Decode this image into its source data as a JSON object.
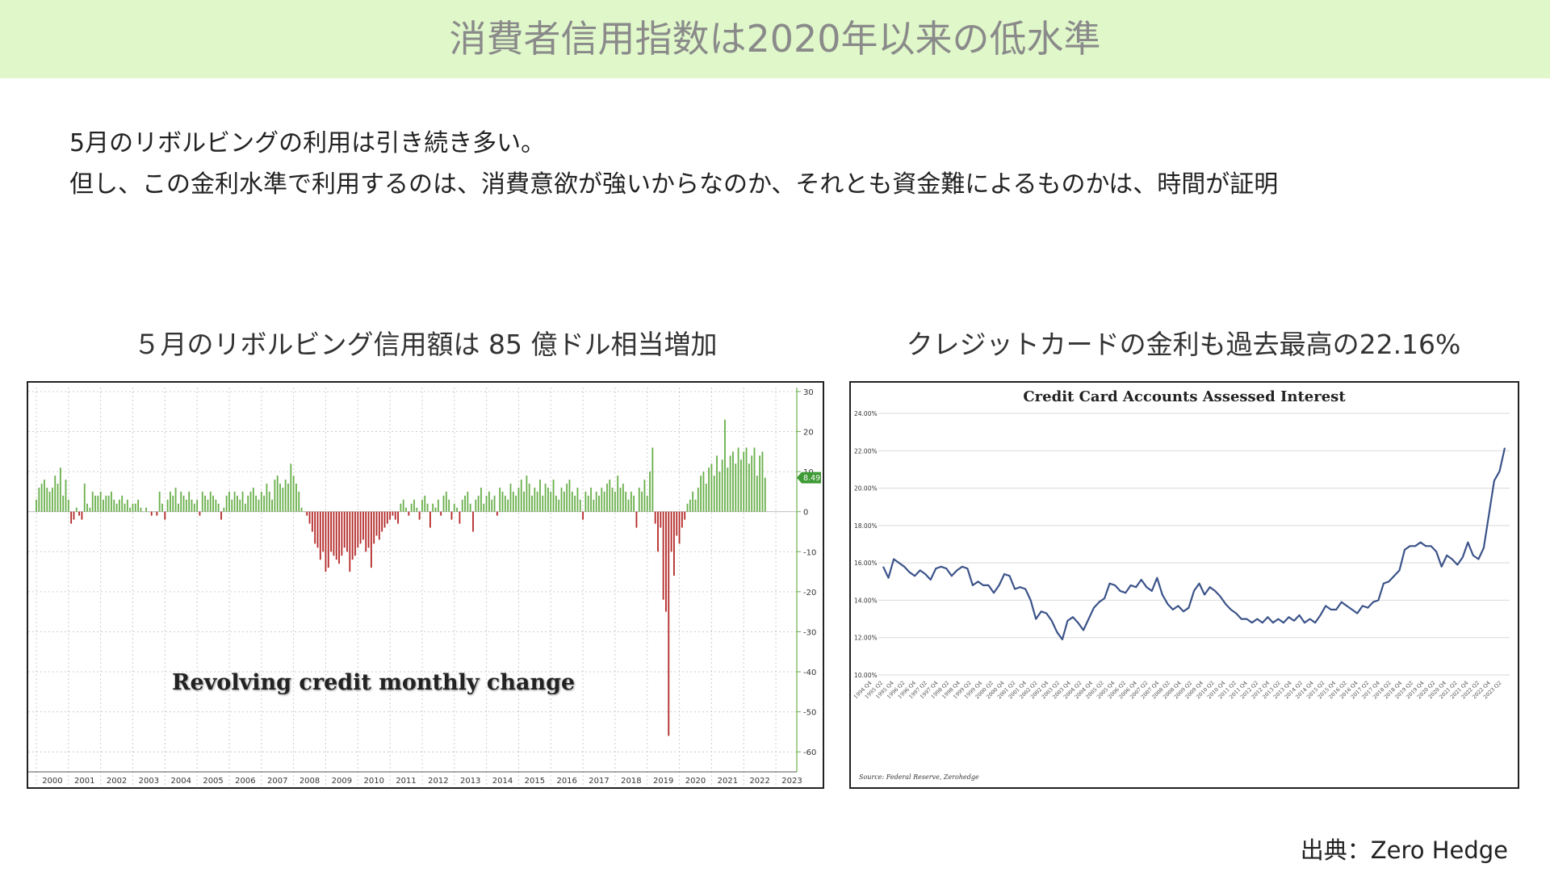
{
  "header": {
    "title": "消費者信用指数は2020年以来の低水準"
  },
  "summary": {
    "line1": "5月のリボルビングの利用は引き続き多い。",
    "line2": "但し、この金利水準で利用するのは、消費意欲が強いからなのか、それとも資金難によるものかは、時間が証明"
  },
  "left_panel": {
    "title": "５月のリボルビング信用額は 85 億ドル相当増加"
  },
  "right_panel": {
    "title": "クレジットカードの金利も過去最高の22.16%"
  },
  "source": {
    "label": "出典：Zero Hedge"
  },
  "chart_data": [
    {
      "type": "bar",
      "annotation": "Revolving credit monthly change",
      "ylim": [
        -65,
        31
      ],
      "y_ticks": [
        "30",
        "20",
        "10",
        "0",
        "-10",
        "-20",
        "-30",
        "-40",
        "-50",
        "-60"
      ],
      "x_labels": [
        "2000",
        "2001",
        "2002",
        "2003",
        "2004",
        "2005",
        "2006",
        "2007",
        "2008",
        "2009",
        "2010",
        "2011",
        "2012",
        "2013",
        "2014",
        "2015",
        "2016",
        "2017",
        "2018",
        "2019",
        "2020",
        "2021",
        "2022",
        "2023"
      ],
      "last_value_label": "8.497",
      "positive_color": "#6ab04c",
      "negative_color": "#b52a2a",
      "x_start": 2000.0,
      "x_step": 0.08333,
      "values": [
        3,
        6,
        7,
        8,
        6,
        5,
        6,
        9,
        7,
        11,
        4,
        8,
        3,
        -3,
        -2,
        1,
        -1,
        -2,
        7,
        2,
        1,
        5,
        4,
        4,
        5,
        3,
        4,
        4,
        5,
        3,
        2,
        3,
        4,
        2,
        3,
        1,
        2,
        2,
        3,
        1,
        0,
        1,
        0,
        -1,
        0,
        -1,
        5,
        2,
        -2,
        3,
        5,
        4,
        6,
        2,
        5,
        4,
        3,
        5,
        3,
        2,
        3,
        -1,
        5,
        4,
        3,
        5,
        4,
        3,
        2,
        -2,
        1,
        4,
        5,
        3,
        5,
        4,
        3,
        5,
        2,
        4,
        5,
        6,
        4,
        3,
        5,
        4,
        7,
        5,
        3,
        8,
        9,
        7,
        6,
        8,
        7,
        12,
        9,
        7,
        5,
        1,
        0,
        -1,
        -3,
        -5,
        -8,
        -9,
        -12,
        -10,
        -15,
        -14,
        -10,
        -11,
        -12,
        -13,
        -11,
        -9,
        -10,
        -15,
        -12,
        -11,
        -9,
        -8,
        -7,
        -10,
        -9,
        -14,
        -8,
        -6,
        -7,
        -5,
        -4,
        -3,
        -2,
        -1,
        -2,
        -3,
        2,
        3,
        1,
        -1,
        2,
        3,
        1,
        -2,
        3,
        4,
        2,
        -4,
        2,
        1,
        3,
        -1,
        4,
        5,
        3,
        -2,
        2,
        1,
        -3,
        3,
        4,
        5,
        2,
        -5,
        3,
        4,
        6,
        2,
        4,
        5,
        3,
        4,
        -1,
        6,
        5,
        4,
        3,
        7,
        5,
        4,
        6,
        8,
        5,
        9,
        7,
        4,
        6,
        5,
        8,
        4,
        7,
        6,
        5,
        8,
        4,
        3,
        6,
        5,
        7,
        8,
        5,
        4,
        6,
        3,
        -2,
        5,
        4,
        6,
        3,
        5,
        4,
        6,
        5,
        7,
        8,
        6,
        5,
        9,
        6,
        7,
        5,
        3,
        5,
        4,
        -4,
        6,
        5,
        8,
        4,
        10,
        16,
        -3,
        -10,
        -4,
        -22,
        -25,
        -56,
        -10,
        -16,
        -6,
        -8,
        -4,
        -2,
        2,
        3,
        5,
        3,
        6,
        9,
        10,
        7,
        11,
        12,
        9,
        14,
        10,
        13,
        23,
        11,
        14,
        15,
        12,
        16,
        13,
        15,
        16,
        12,
        14,
        16,
        9,
        14,
        15,
        8.5
      ]
    },
    {
      "type": "line",
      "title": "Credit Card Accounts Assessed Interest",
      "ylim": [
        10,
        24
      ],
      "y_ticks": [
        "24.00%",
        "22.00%",
        "20.00%",
        "18.00%",
        "16.00%",
        "14.00%",
        "12.00%",
        "10.00%"
      ],
      "x_labels": [
        "1994 Q4",
        "1995 Q2",
        "1995 Q4",
        "1996 Q2",
        "1996 Q4",
        "1997 Q2",
        "1997 Q4",
        "1998 Q2",
        "1998 Q4",
        "1999 Q2",
        "1999 Q4",
        "2000 Q2",
        "2000 Q4",
        "2001 Q2",
        "2001 Q4",
        "2002 Q2",
        "2002 Q4",
        "2003 Q2",
        "2003 Q4",
        "2004 Q2",
        "2004 Q4",
        "2005 Q2",
        "2005 Q4",
        "2006 Q2",
        "2006 Q4",
        "2007 Q2",
        "2007 Q4",
        "2008 Q2",
        "2008 Q4",
        "2009 Q2",
        "2009 Q4",
        "2010 Q2",
        "2010 Q4",
        "2011 Q2",
        "2011 Q4",
        "2012 Q2",
        "2012 Q4",
        "2013 Q2",
        "2013 Q4",
        "2014 Q2",
        "2014 Q4",
        "2015 Q2",
        "2015 Q4",
        "2016 Q2",
        "2016 Q4",
        "2017 Q2",
        "2017 Q4",
        "2018 Q2",
        "2018 Q4",
        "2019 Q2",
        "2019 Q4",
        "2020 Q2",
        "2020 Q4",
        "2021 Q2",
        "2021 Q4",
        "2022 Q2",
        "2022 Q4",
        "2023 Q2"
      ],
      "source_note": "Source: Federal Reserve, Zerohedge",
      "line_color": "#3b5389",
      "values": [
        15.8,
        15.2,
        16.2,
        16.0,
        15.8,
        15.5,
        15.3,
        15.6,
        15.4,
        15.1,
        15.7,
        15.8,
        15.7,
        15.3,
        15.6,
        15.8,
        15.7,
        14.8,
        15.0,
        14.8,
        14.8,
        14.4,
        14.8,
        15.4,
        15.3,
        14.6,
        14.7,
        14.6,
        14.0,
        13.0,
        13.4,
        13.3,
        12.9,
        12.3,
        11.9,
        12.9,
        13.1,
        12.8,
        12.4,
        13.0,
        13.6,
        13.9,
        14.1,
        14.9,
        14.8,
        14.5,
        14.4,
        14.8,
        14.7,
        15.1,
        14.7,
        14.5,
        15.2,
        14.3,
        13.8,
        13.5,
        13.7,
        13.4,
        13.6,
        14.5,
        14.9,
        14.3,
        14.7,
        14.5,
        14.2,
        13.8,
        13.5,
        13.3,
        13.0,
        13.0,
        12.8,
        13.0,
        12.8,
        13.1,
        12.8,
        13.0,
        12.8,
        13.1,
        12.9,
        13.2,
        12.8,
        13.0,
        12.8,
        13.2,
        13.7,
        13.5,
        13.5,
        13.9,
        13.7,
        13.5,
        13.3,
        13.7,
        13.6,
        13.9,
        14.0,
        14.9,
        15.0,
        15.3,
        15.6,
        16.7,
        16.9,
        16.9,
        17.1,
        16.9,
        16.9,
        16.6,
        15.8,
        16.4,
        16.2,
        15.9,
        16.3,
        17.1,
        16.4,
        16.2,
        16.8,
        18.6,
        20.4,
        20.9,
        22.16
      ]
    }
  ]
}
